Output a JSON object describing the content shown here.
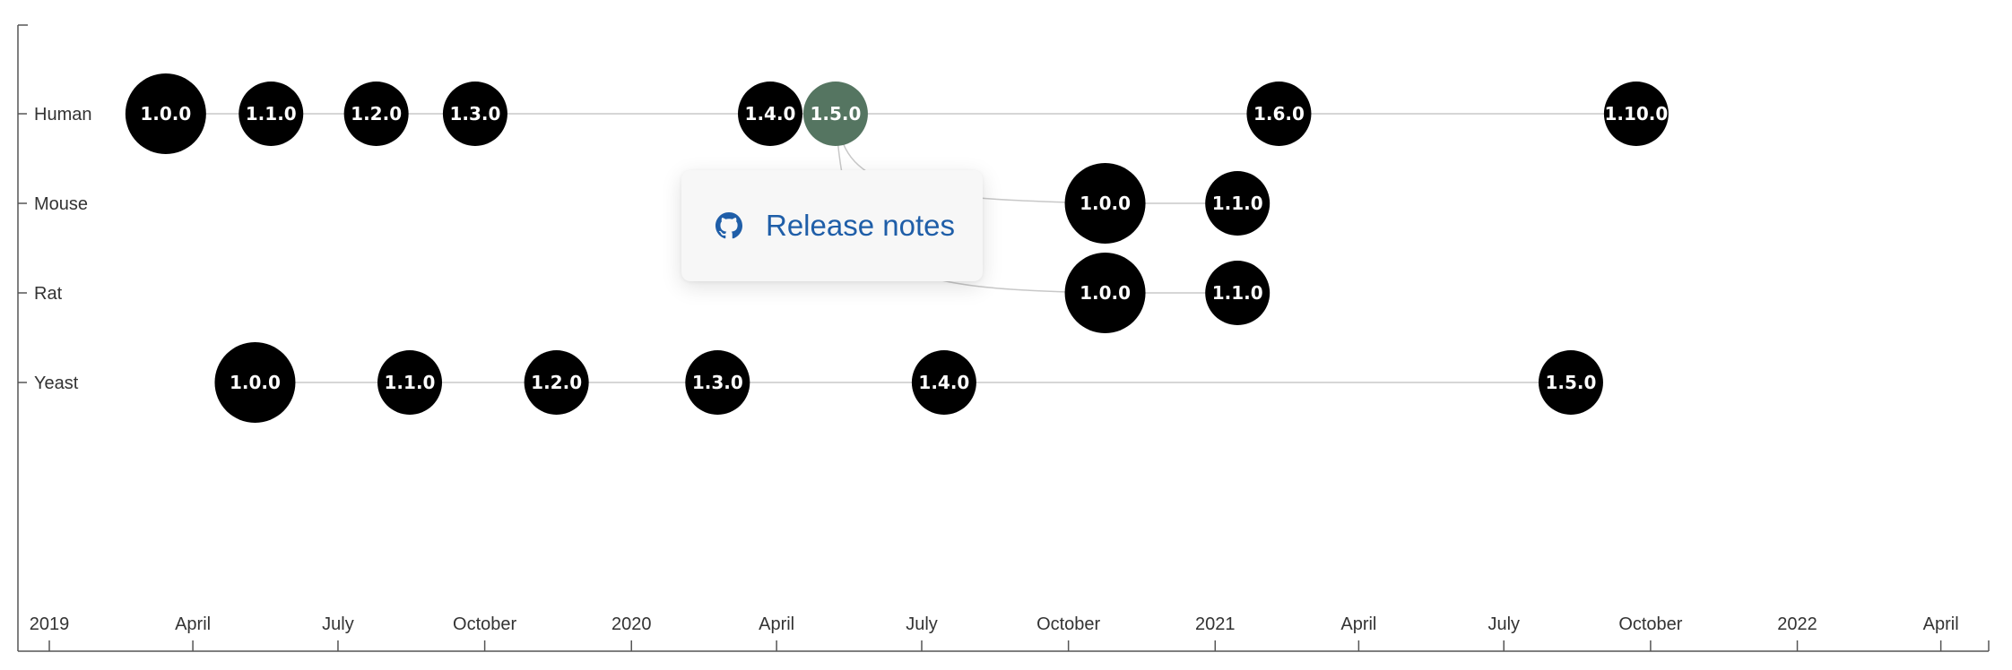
{
  "chart_data": {
    "type": "scatter",
    "x_axis": {
      "ticks": [
        "2019",
        "April",
        "July",
        "October",
        "2020",
        "April",
        "July",
        "October",
        "2021",
        "April",
        "July",
        "October",
        "2022",
        "April"
      ],
      "range": [
        "2019-01-01",
        "2022-05-01"
      ]
    },
    "rows": [
      "Human",
      "Mouse",
      "Rat",
      "Yeast"
    ],
    "series": [
      {
        "name": "Human",
        "points": [
          {
            "label": "1.0.0",
            "date": "2019-03-15"
          },
          {
            "label": "1.1.0",
            "date": "2019-05-20"
          },
          {
            "label": "1.2.0",
            "date": "2019-07-25"
          },
          {
            "label": "1.3.0",
            "date": "2019-09-25"
          },
          {
            "label": "1.4.0",
            "date": "2020-03-28"
          },
          {
            "label": "1.5.0",
            "date": "2020-05-08"
          },
          {
            "label": "1.6.0",
            "date": "2021-02-10"
          },
          {
            "label": "1.10.0",
            "date": "2021-09-22"
          }
        ]
      },
      {
        "name": "Mouse",
        "points": [
          {
            "label": "1.0.0",
            "date": "2020-10-24"
          },
          {
            "label": "1.1.0",
            "date": "2021-01-15"
          }
        ]
      },
      {
        "name": "Rat",
        "points": [
          {
            "label": "1.0.0",
            "date": "2020-10-24"
          },
          {
            "label": "1.1.0",
            "date": "2021-01-15"
          }
        ]
      },
      {
        "name": "Yeast",
        "points": [
          {
            "label": "1.0.0",
            "date": "2019-05-10"
          },
          {
            "label": "1.1.0",
            "date": "2019-08-15"
          },
          {
            "label": "1.2.0",
            "date": "2019-11-15"
          },
          {
            "label": "1.3.0",
            "date": "2020-02-24"
          },
          {
            "label": "1.4.0",
            "date": "2020-07-15"
          },
          {
            "label": "1.5.0",
            "date": "2021-08-12"
          }
        ]
      }
    ],
    "links": [
      {
        "from": "Human 1.5.0",
        "to": "Mouse 1.0.0"
      },
      {
        "from": "Human 1.5.0",
        "to": "Rat 1.0.0"
      }
    ],
    "selected": "Human 1.5.0",
    "colors": {
      "node": "#000000",
      "selected": "#557561",
      "line": "#c8c8c8",
      "axis": "#555555"
    }
  },
  "popup": {
    "link_label": "Release notes",
    "icon": "github-icon",
    "link_color": "#1f5ea8"
  }
}
